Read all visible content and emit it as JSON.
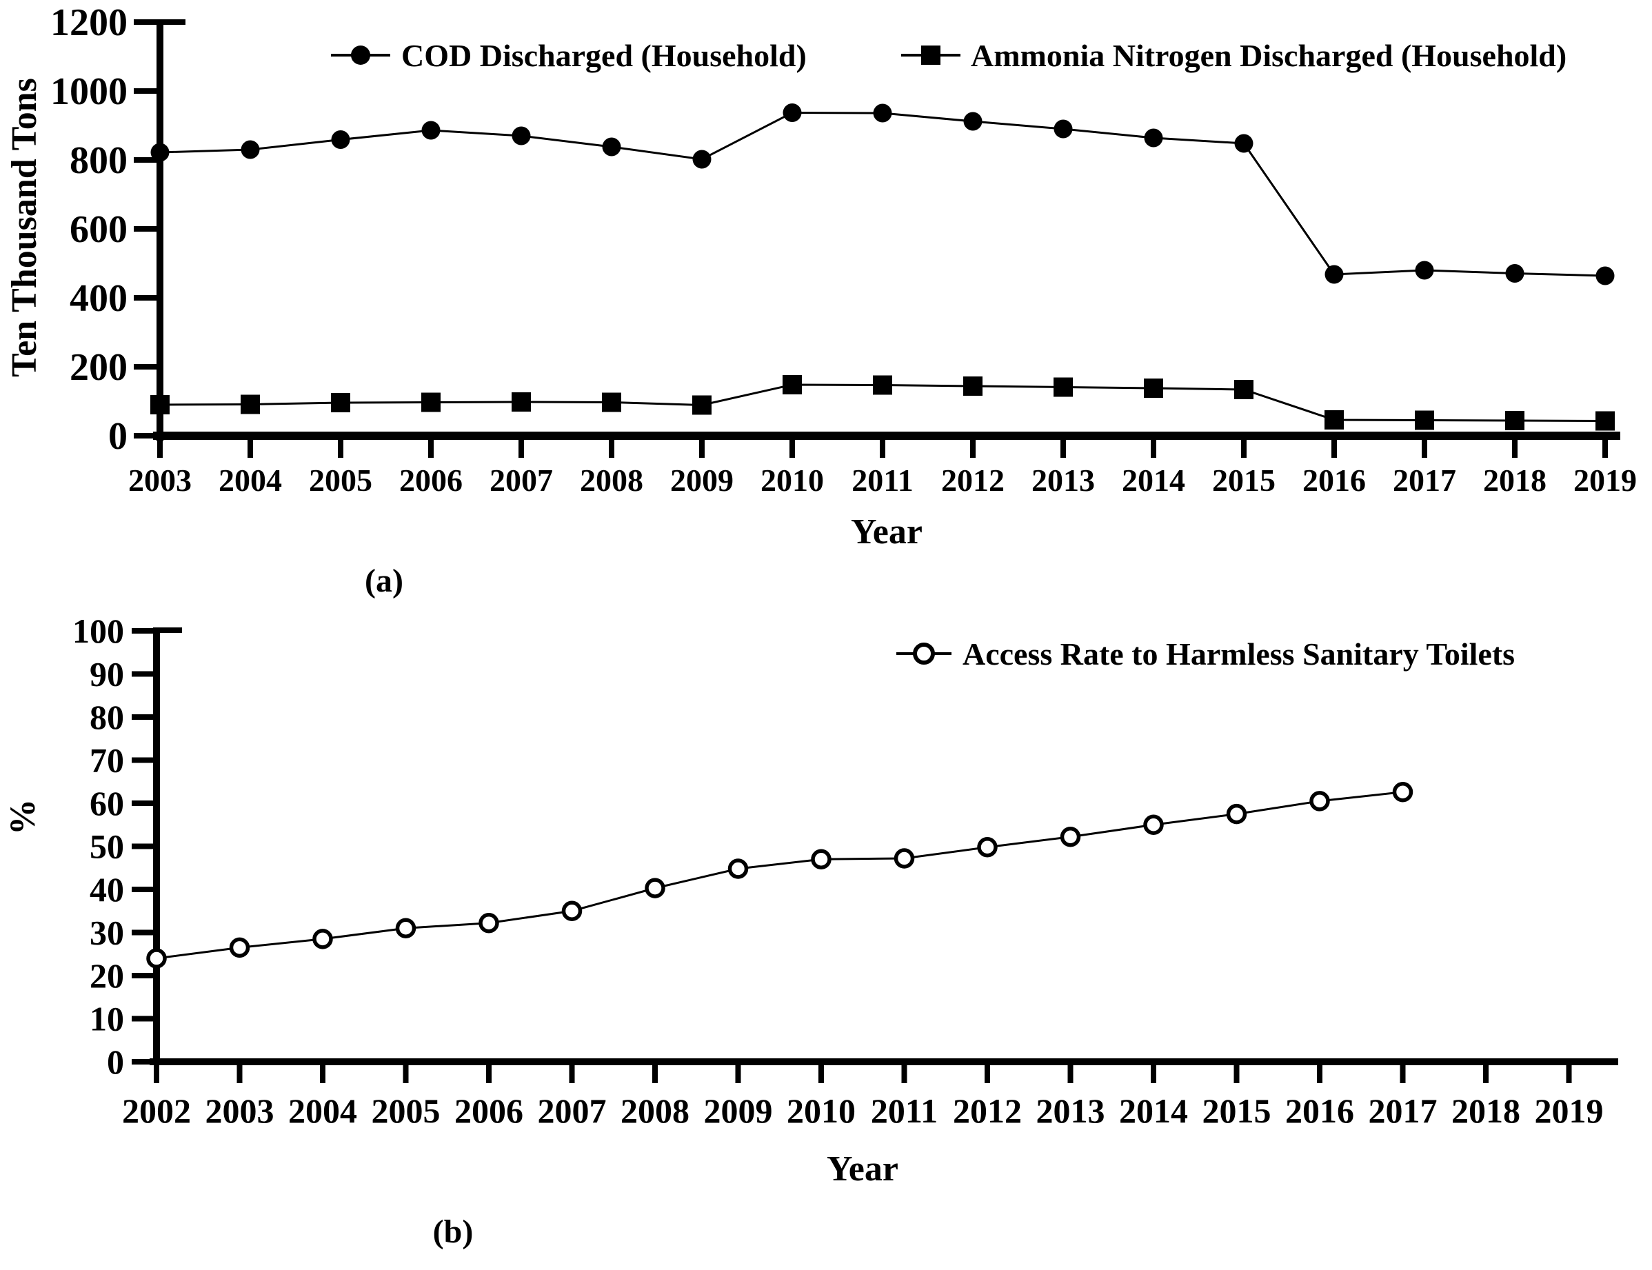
{
  "colors": {
    "foreground": "#000000",
    "background": "#ffffff"
  },
  "panels": {
    "a": {
      "label": "(a)"
    },
    "b": {
      "label": "(b)"
    }
  },
  "chart_data": [
    {
      "type": "line",
      "panel": "a",
      "title": "",
      "xlabel": "Year",
      "ylabel": "Ten Thousand Tons",
      "ylim": [
        0,
        1200
      ],
      "ytick_step": 200,
      "grid": false,
      "legend_position": "top-center",
      "x": [
        2003,
        2004,
        2005,
        2006,
        2007,
        2008,
        2009,
        2010,
        2011,
        2012,
        2013,
        2014,
        2015,
        2016,
        2017,
        2018,
        2019
      ],
      "series": [
        {
          "name": "COD Discharged (Household)",
          "marker": "filled-circle",
          "values": [
            822,
            830,
            859,
            886,
            870,
            838,
            802,
            937,
            936,
            912,
            890,
            864,
            848,
            468,
            480,
            471,
            464
          ]
        },
        {
          "name": "Ammonia Nitrogen Discharged (Household)",
          "marker": "filled-square",
          "values": [
            90,
            91,
            96,
            97,
            98,
            97,
            89,
            148,
            147,
            144,
            141,
            138,
            134,
            46,
            45,
            44,
            43
          ]
        }
      ]
    },
    {
      "type": "line",
      "panel": "b",
      "title": "",
      "xlabel": "Year",
      "ylabel": "%",
      "ylim": [
        0,
        100
      ],
      "ytick_step": 10,
      "grid": false,
      "legend_position": "upper-right",
      "x_axis_years": [
        2002,
        2003,
        2004,
        2005,
        2006,
        2007,
        2008,
        2009,
        2010,
        2011,
        2012,
        2013,
        2014,
        2015,
        2016,
        2017,
        2018,
        2019
      ],
      "x": [
        2002,
        2003,
        2004,
        2005,
        2006,
        2007,
        2008,
        2009,
        2010,
        2011,
        2012,
        2013,
        2014,
        2015,
        2016,
        2017
      ],
      "series": [
        {
          "name": "Access Rate to Harmless Sanitary Toilets",
          "marker": "open-circle",
          "values": [
            24.0,
            26.5,
            28.5,
            31.0,
            32.2,
            35.0,
            40.3,
            44.8,
            47.0,
            47.2,
            49.8,
            52.2,
            55.0,
            57.5,
            60.5,
            62.6
          ]
        }
      ]
    }
  ]
}
